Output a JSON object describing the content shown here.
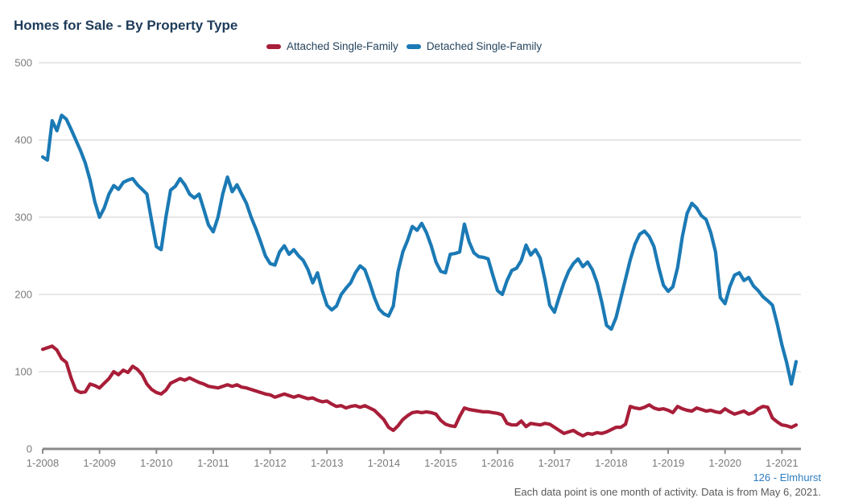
{
  "title": "Homes for Sale - By Property Type",
  "footer": {
    "community_link": "126 - Elmhurst",
    "note": "Each data point is one month of activity. Data is from May 6, 2021."
  },
  "colors": {
    "attached": "#a81e39",
    "detached": "#1b7ab5",
    "title_text": "#1e3c5a",
    "legend_text": "#26455e",
    "axis_label": "#7a7a7a",
    "gridline": "#cfcfcf",
    "axis_line": "#8a8a8a",
    "link_blue": "#2f7ec0",
    "note_gray": "#595959"
  },
  "chart_data": {
    "type": "line",
    "title": "Homes for Sale - By Property Type",
    "xlabel": "",
    "ylabel": "",
    "ylim": [
      0,
      500
    ],
    "y_ticks": [
      0,
      100,
      200,
      300,
      400,
      500
    ],
    "x_tick_labels": [
      "1-2008",
      "1-2009",
      "1-2010",
      "1-2011",
      "1-2012",
      "1-2013",
      "1-2014",
      "1-2015",
      "1-2016",
      "1-2017",
      "1-2018",
      "1-2019",
      "1-2020",
      "1-2021"
    ],
    "x_start_month": "1-2008",
    "x_end_month": "4-2021",
    "months_per_point": 1,
    "grid": true,
    "legend_position": "top-center",
    "series": [
      {
        "name": "Attached Single-Family",
        "color": "#a81e39",
        "values": [
          129,
          131,
          133,
          128,
          117,
          112,
          92,
          76,
          73,
          74,
          84,
          82,
          79,
          85,
          91,
          100,
          96,
          102,
          99,
          107,
          103,
          96,
          84,
          77,
          73,
          71,
          76,
          85,
          88,
          91,
          89,
          92,
          89,
          86,
          84,
          81,
          80,
          79,
          81,
          83,
          81,
          83,
          80,
          79,
          77,
          75,
          73,
          71,
          70,
          67,
          69,
          71,
          69,
          67,
          69,
          67,
          65,
          66,
          63,
          61,
          62,
          58,
          55,
          56,
          53,
          55,
          56,
          54,
          56,
          53,
          50,
          44,
          38,
          28,
          24,
          30,
          38,
          43,
          47,
          48,
          47,
          48,
          47,
          45,
          37,
          32,
          30,
          29,
          42,
          53,
          51,
          50,
          49,
          48,
          48,
          47,
          46,
          44,
          33,
          31,
          31,
          36,
          29,
          33,
          32,
          31,
          33,
          32,
          28,
          24,
          20,
          22,
          24,
          20,
          17,
          20,
          19,
          21,
          20,
          22,
          25,
          28,
          28,
          32,
          55,
          53,
          52,
          54,
          57,
          53,
          51,
          52,
          50,
          47,
          55,
          52,
          50,
          49,
          53,
          51,
          49,
          50,
          48,
          47,
          52,
          48,
          45,
          47,
          49,
          45,
          47,
          52,
          55,
          54,
          40,
          35,
          31,
          30,
          28,
          31
        ]
      },
      {
        "name": "Detached Single-Family",
        "color": "#1b7ab5",
        "values": [
          378,
          374,
          425,
          412,
          432,
          427,
          414,
          400,
          386,
          370,
          348,
          320,
          300,
          312,
          330,
          341,
          336,
          345,
          348,
          350,
          342,
          336,
          330,
          295,
          262,
          258,
          300,
          335,
          340,
          350,
          342,
          330,
          325,
          330,
          310,
          290,
          281,
          300,
          330,
          352,
          333,
          342,
          330,
          318,
          300,
          285,
          268,
          250,
          240,
          238,
          255,
          263,
          252,
          258,
          250,
          244,
          232,
          215,
          228,
          205,
          186,
          180,
          185,
          200,
          208,
          215,
          228,
          237,
          232,
          215,
          196,
          181,
          175,
          172,
          185,
          230,
          255,
          270,
          288,
          283,
          292,
          280,
          263,
          242,
          230,
          228,
          252,
          253,
          255,
          291,
          268,
          254,
          249,
          248,
          246,
          225,
          205,
          200,
          218,
          231,
          234,
          244,
          264,
          251,
          258,
          247,
          219,
          186,
          177,
          197,
          215,
          230,
          240,
          246,
          236,
          242,
          232,
          215,
          190,
          160,
          155,
          170,
          195,
          220,
          245,
          265,
          278,
          282,
          275,
          262,
          235,
          212,
          204,
          210,
          235,
          275,
          305,
          318,
          312,
          302,
          297,
          280,
          255,
          196,
          188,
          210,
          225,
          228,
          218,
          222,
          211,
          205,
          197,
          192,
          186,
          162,
          135,
          112,
          84,
          113
        ]
      }
    ]
  }
}
